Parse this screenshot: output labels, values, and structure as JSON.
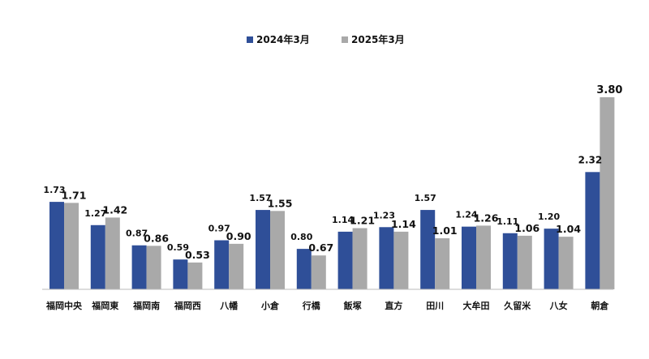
{
  "chart_data": {
    "type": "bar",
    "categories": [
      "福岡中央",
      "福岡東",
      "福岡南",
      "福岡西",
      "八幡",
      "小倉",
      "行橋",
      "飯塚",
      "直方",
      "田川",
      "大牟田",
      "久留米",
      "八女",
      "朝倉"
    ],
    "series": [
      {
        "name": "2024年3月",
        "color": "#2f4f98",
        "values": [
          1.73,
          1.27,
          0.87,
          0.59,
          0.97,
          1.57,
          0.8,
          1.14,
          1.23,
          1.57,
          1.24,
          1.11,
          1.2,
          2.32
        ],
        "labels": [
          "1.73",
          "1.27",
          "0.87",
          "0.59",
          "0.97",
          "1.57",
          "0.80",
          "1.14",
          "1.23",
          "1.57",
          "1.24",
          "1.11",
          "1.20",
          "2.32"
        ]
      },
      {
        "name": "2025年3月",
        "color": "#a9a9a9",
        "values": [
          1.71,
          1.42,
          0.86,
          0.53,
          0.9,
          1.55,
          0.67,
          1.21,
          1.14,
          1.01,
          1.26,
          1.06,
          1.04,
          3.8
        ],
        "labels": [
          "1.71",
          "1.42",
          "0.86",
          "0.53",
          "0.90",
          "1.55",
          "0.67",
          "1.21",
          "1.14",
          "1.01",
          "1.26",
          "1.06",
          "1.04",
          "3.80"
        ]
      }
    ],
    "title": "",
    "xlabel": "",
    "ylabel": "",
    "ylim": [
      0,
      3.8
    ],
    "grid": false,
    "legend_position": "top-center"
  }
}
